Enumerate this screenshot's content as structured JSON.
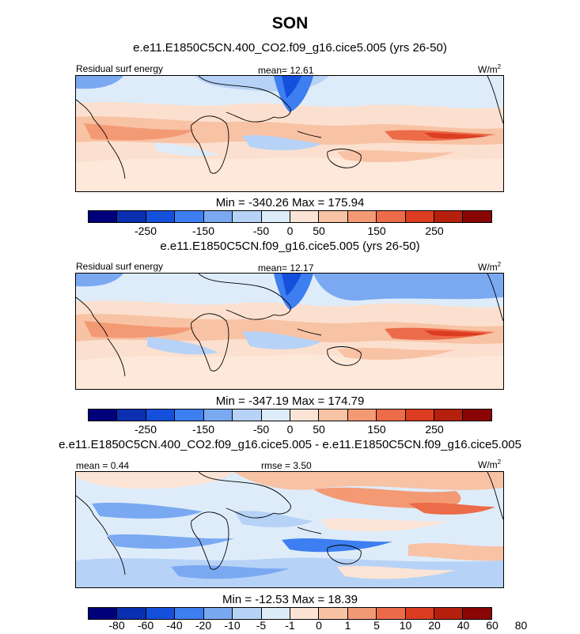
{
  "title": "SON",
  "units_base": "W/m",
  "units_exp": "2",
  "palette_abs": [
    "#00007a",
    "#0a2fb0",
    "#1550dc",
    "#3d7ef0",
    "#7aa9f2",
    "#b7d2f7",
    "#deecfa",
    "#fbe4d6",
    "#f8c2a4",
    "#f39a74",
    "#ec6b48",
    "#dc3d22",
    "#b5200e",
    "#8a0505"
  ],
  "palette_diff": [
    "#00007a",
    "#0a2fb0",
    "#1550dc",
    "#3d7ef0",
    "#7aa9f2",
    "#b7d2f7",
    "#deecfa",
    "#fbe4d6",
    "#f8c2a4",
    "#f39a74",
    "#ec6b48",
    "#dc3d22",
    "#b5200e",
    "#8a0505"
  ],
  "panels": [
    {
      "subtitle": "e.e11.E1850C5CN.400_CO2.f09_g16.cice5.005 (yrs 26-50)",
      "left_label": "Residual surf energy",
      "center_label": "mean=  12.61",
      "minmax": "Min = -340.26 Max = 175.94"
    },
    {
      "subtitle": "e.e11.E1850C5CN.f09_g16.cice5.005 (yrs 26-50)",
      "left_label": "Residual surf energy",
      "center_label": "mean=  12.17",
      "minmax": "Min = -347.19 Max = 174.79"
    },
    {
      "subtitle": "e.e11.E1850C5CN.400_CO2.f09_g16.cice5.005 - e.e11.E1850C5CN.f09_g16.cice5.005",
      "left_label": "mean =   0.44",
      "center_label": "rmse =   3.50",
      "minmax": "Min = -12.53 Max = 18.39"
    }
  ],
  "chart_data": [
    {
      "type": "heatmap",
      "title": "SON",
      "subtitle": "e.e11.E1850C5CN.400_CO2.f09_g16.cice5.005 (yrs 26-50)",
      "variable": "Residual surf energy",
      "units": "W/m2",
      "mean": 12.61,
      "min": -340.26,
      "max": 175.94,
      "colorbar_ticks": [
        "-250",
        "-150",
        "-50",
        "0",
        "50",
        "150",
        "250"
      ],
      "colorbar_tick_boundaries": [
        1,
        3,
        5,
        6,
        7,
        9,
        11
      ]
    },
    {
      "type": "heatmap",
      "subtitle": "e.e11.E1850C5CN.f09_g16.cice5.005 (yrs 26-50)",
      "variable": "Residual surf energy",
      "units": "W/m2",
      "mean": 12.17,
      "min": -347.19,
      "max": 174.79,
      "colorbar_ticks": [
        "-250",
        "-150",
        "-50",
        "0",
        "50",
        "150",
        "250"
      ],
      "colorbar_tick_boundaries": [
        1,
        3,
        5,
        6,
        7,
        9,
        11
      ]
    },
    {
      "type": "heatmap",
      "subtitle": "e.e11.E1850C5CN.400_CO2.f09_g16.cice5.005 - e.e11.E1850C5CN.f09_g16.cice5.005",
      "units": "W/m2",
      "mean": 0.44,
      "rmse": 3.5,
      "min": -12.53,
      "max": 18.39,
      "colorbar_ticks": [
        "-80",
        "-60",
        "-40",
        "-20",
        "-10",
        "-5",
        "-1",
        "0",
        "1",
        "5",
        "10",
        "20",
        "40",
        "60",
        "80"
      ],
      "colorbar_tick_boundaries": [
        0,
        1,
        2,
        3,
        4,
        5,
        6,
        7,
        8,
        9,
        10,
        11,
        12,
        13,
        14
      ]
    }
  ]
}
